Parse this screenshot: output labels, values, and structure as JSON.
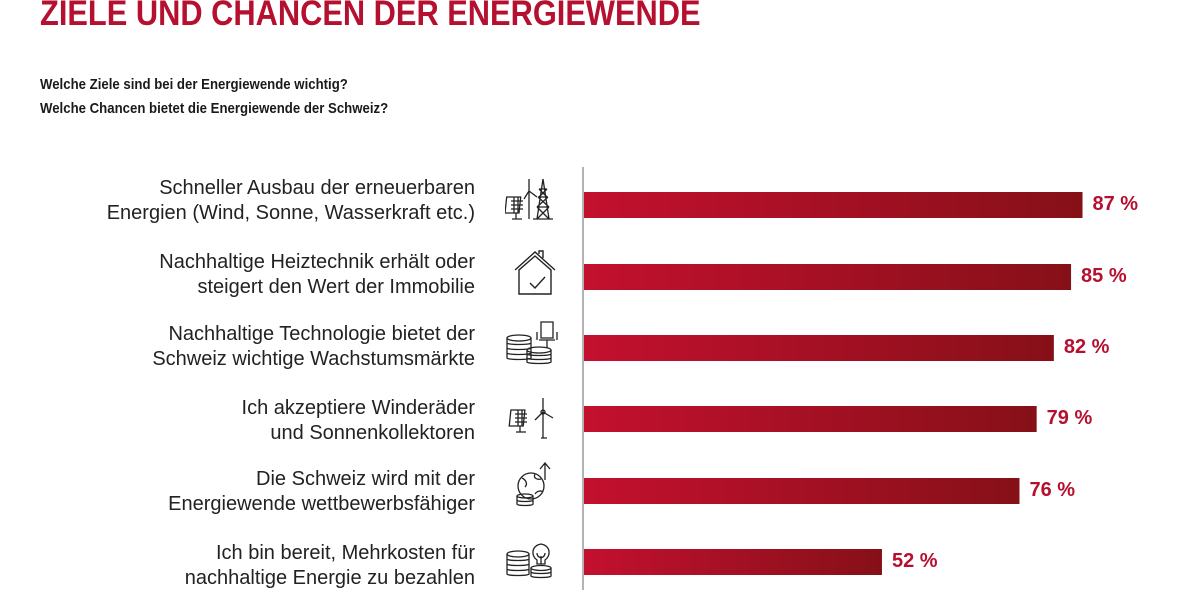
{
  "title": "ZIELE UND CHANCEN DER ENERGIEWENDE",
  "questions": [
    "Welche Ziele sind bei der Energiewende wichtig?",
    "Welche Chancen bietet die Energiewende der Schweiz?"
  ],
  "colors": {
    "accent": "#b5102f",
    "bar_start": "#c3102f",
    "bar_end": "#861018",
    "axis": "#b3b3b3"
  },
  "chart_data": {
    "type": "bar",
    "orientation": "horizontal",
    "title": "ZIELE UND CHANCEN DER ENERGIEWENDE",
    "xlim": [
      0,
      100
    ],
    "unit": "%",
    "grid": false,
    "categories": [
      [
        "Schneller Ausbau der erneuerbaren",
        "Energien (Wind, Sonne, Wasserkraft etc.)"
      ],
      [
        "Nachhaltige Heiztechnik erhält oder",
        "steigert den Wert der Immobilie"
      ],
      [
        "Nachhaltige Technologie bietet der",
        "Schweiz wichtige Wachstumsmärkte"
      ],
      [
        "Ich akzeptiere Winderäder",
        "und Sonnenkollektoren"
      ],
      [
        "Die Schweiz wird mit der",
        "Energiewende wettbewerbsfähiger"
      ],
      [
        "Ich bin bereit, Mehrkosten für",
        "nachhaltige Energie zu bezahlen"
      ]
    ],
    "values": [
      87,
      85,
      82,
      79,
      76,
      52
    ],
    "value_labels": [
      "87 %",
      "85 %",
      "82 %",
      "79 %",
      "76 %",
      "52 %"
    ],
    "icons": [
      "solar-wind-pylon-icon",
      "house-check-icon",
      "coins-chair-icon",
      "solar-windturbine-icon",
      "globe-coins-arrow-icon",
      "coins-bulb-icon"
    ]
  }
}
